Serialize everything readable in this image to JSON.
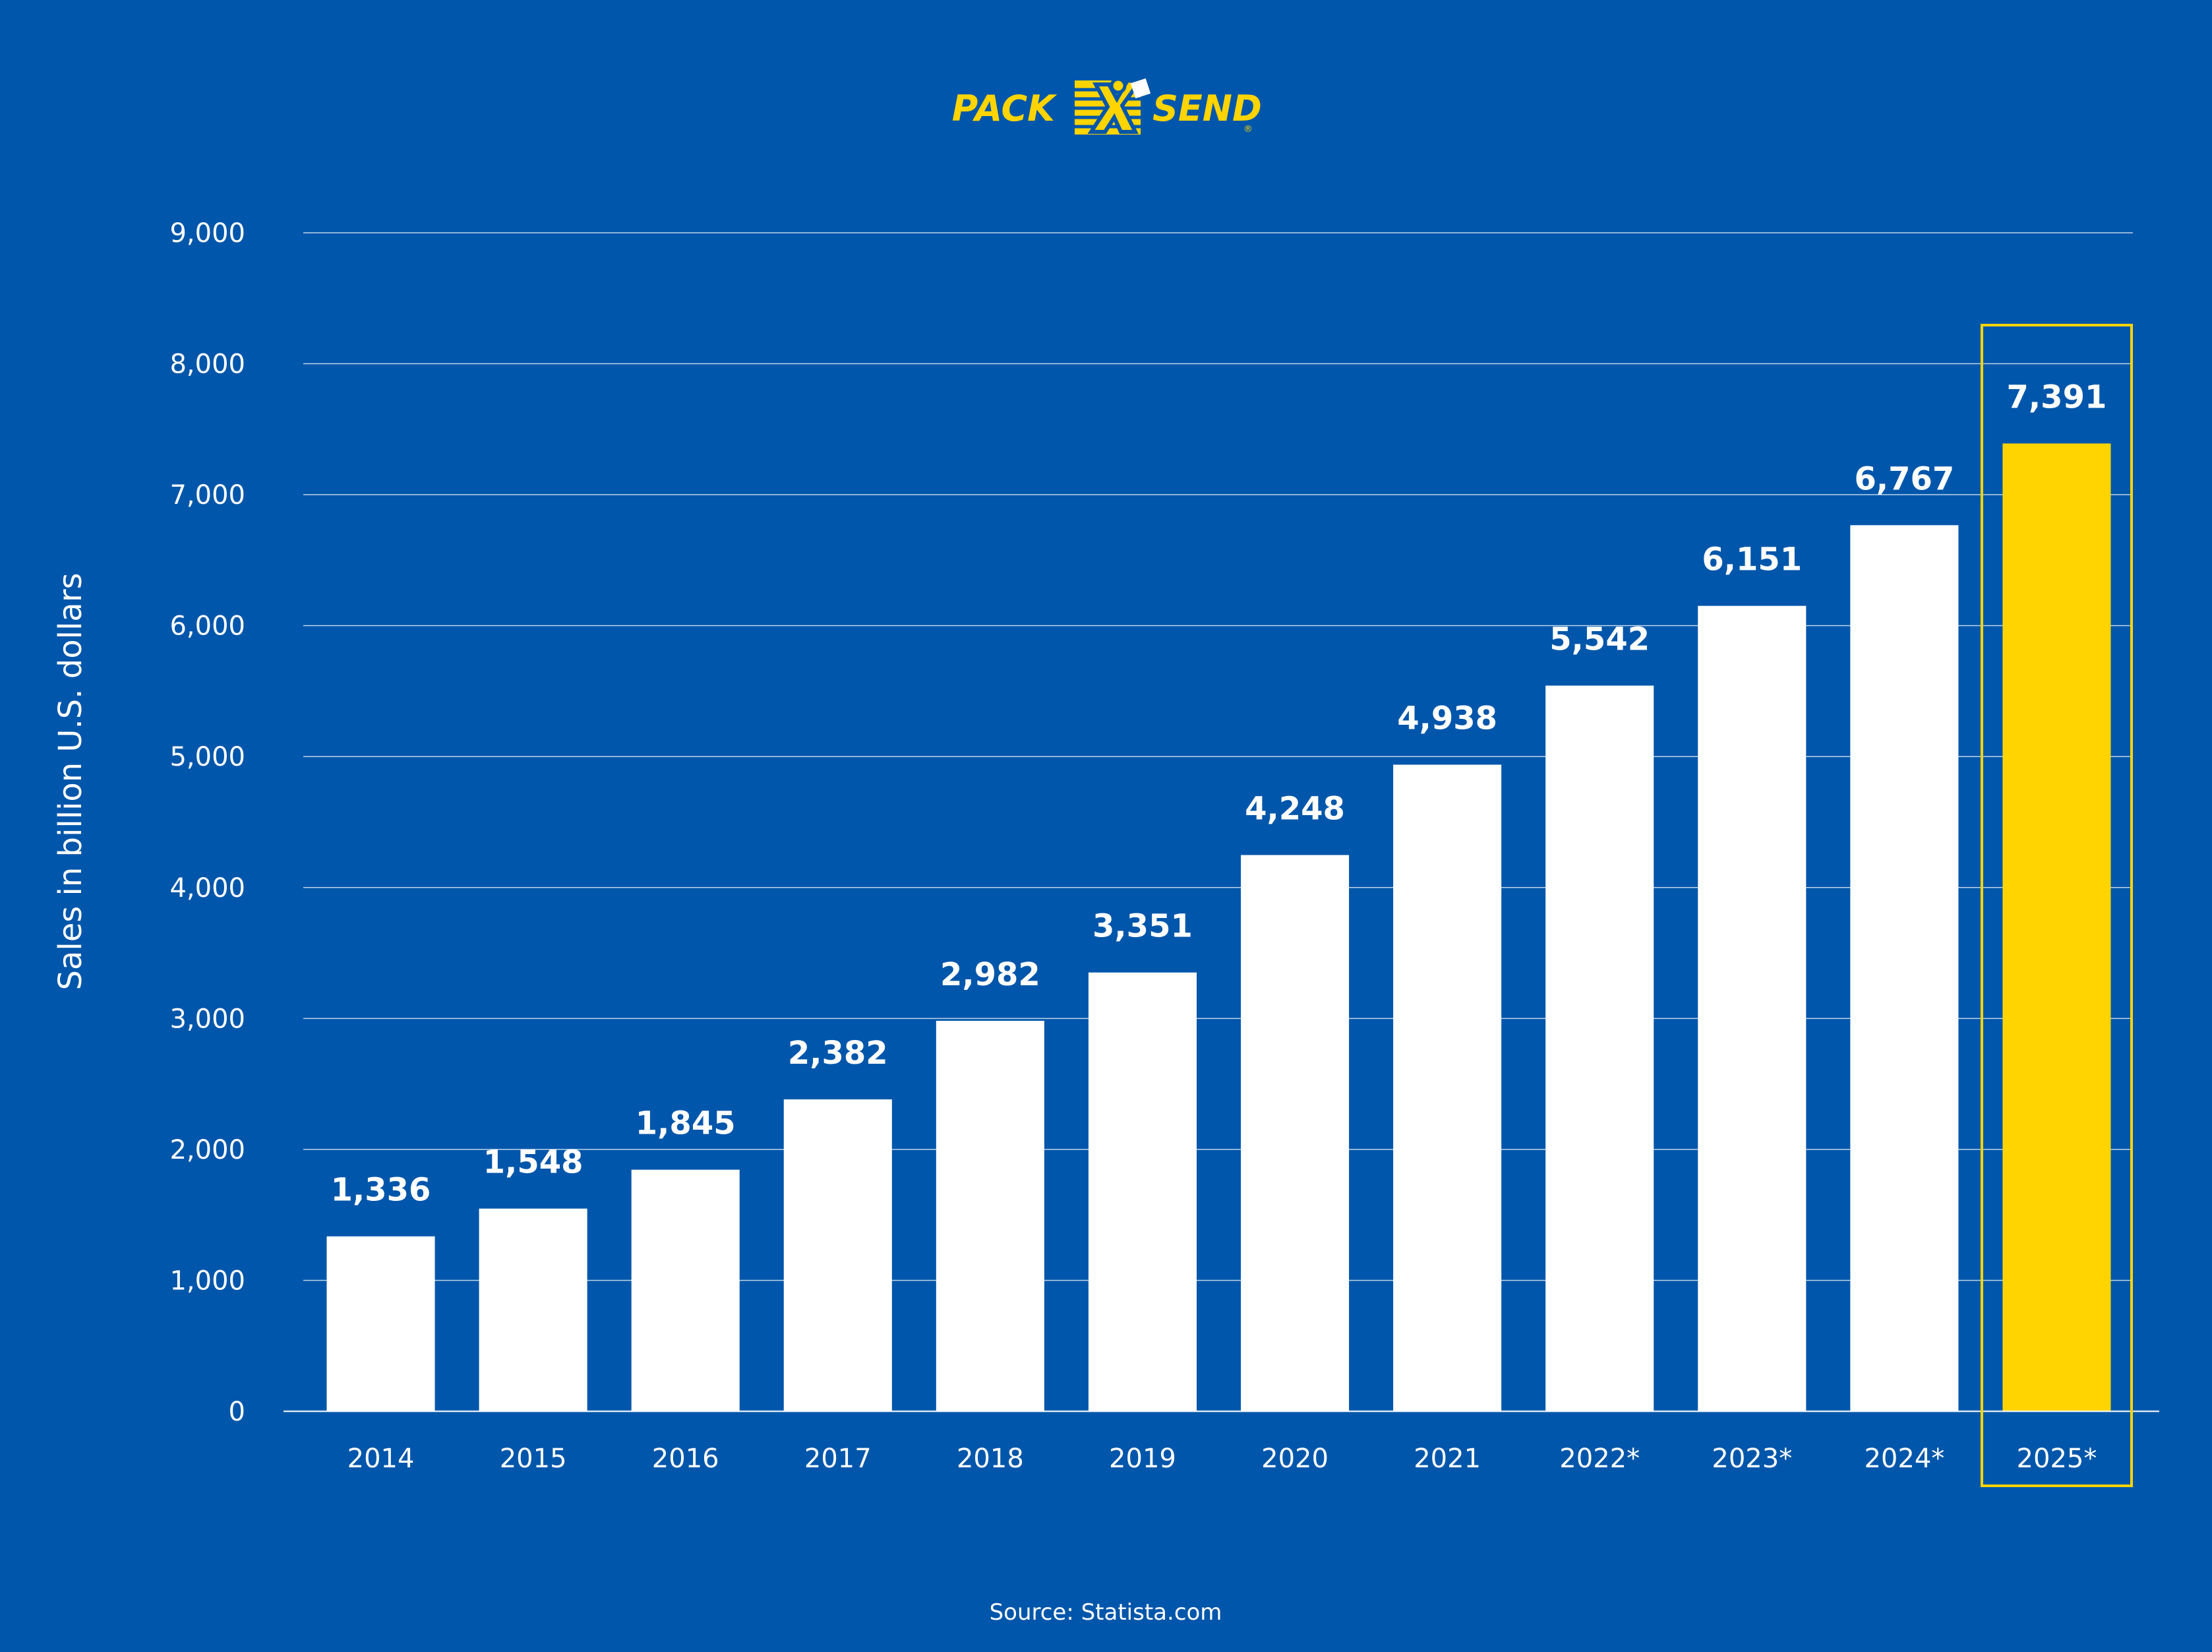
{
  "brand": {
    "logo_left": "PACK",
    "logo_right": "SEND",
    "logo_mark": "®"
  },
  "colors": {
    "background": "#0056aa",
    "bar": "#ffffff",
    "highlight_bar": "#ffd400",
    "highlight_frame": "#ffd400",
    "gridline": "#ffffff"
  },
  "source": "Source: Statista.com",
  "chart_data": {
    "type": "bar",
    "categories": [
      "2014",
      "2015",
      "2016",
      "2017",
      "2018",
      "2019",
      "2020",
      "2021",
      "2022*",
      "2023*",
      "2024*",
      "2025*"
    ],
    "values": [
      1336,
      1548,
      1845,
      2382,
      2982,
      3351,
      4248,
      4938,
      5542,
      6151,
      6767,
      7391
    ],
    "value_labels": [
      "1,336",
      "1,548",
      "1,845",
      "2,382",
      "2,982",
      "3,351",
      "4,248",
      "4,938",
      "5,542",
      "6,151",
      "6,767",
      "7,391"
    ],
    "highlight": "2025*",
    "title": "",
    "xlabel": "",
    "ylabel": "Sales in billion U.S. dollars",
    "ylim": [
      0,
      9000
    ],
    "yticks": [
      0,
      1000,
      2000,
      3000,
      4000,
      5000,
      6000,
      7000,
      8000,
      9000
    ],
    "ytick_labels": [
      "0",
      "1,000",
      "2,000",
      "3,000",
      "4,000",
      "5,000",
      "6,000",
      "7,000",
      "8,000",
      "9,000"
    ],
    "grid": true,
    "legend": "none"
  }
}
